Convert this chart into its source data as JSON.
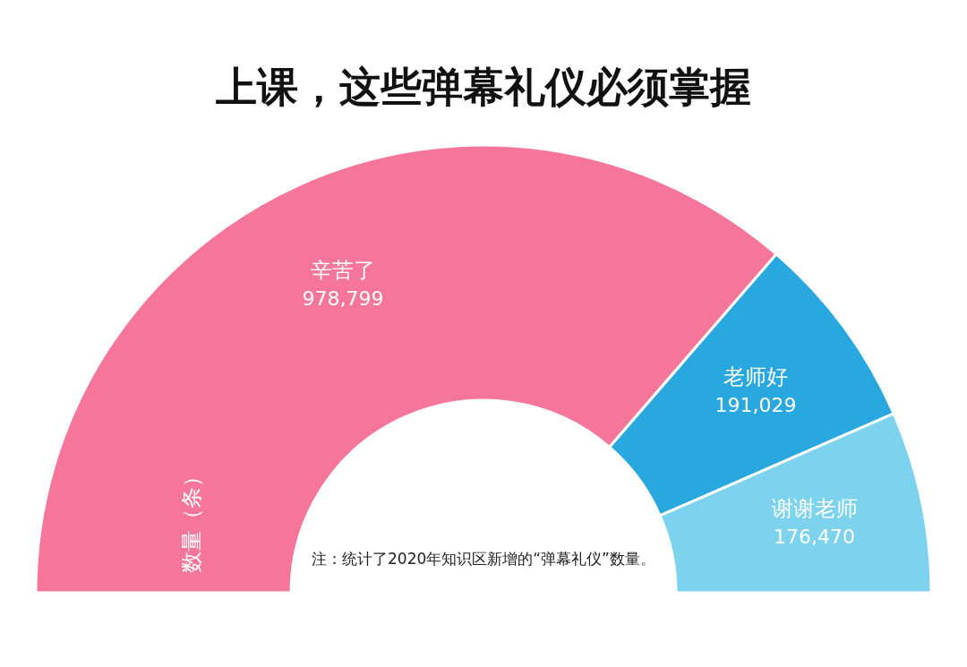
{
  "chart_data": {
    "type": "donut",
    "title": "上课，这些弹幕礼仪必须掌握",
    "ylabel": "数量（条）",
    "categories": [
      "辛苦了",
      "老师好",
      "谢谢老师"
    ],
    "values": [
      978799,
      191029,
      176470
    ],
    "colors": [
      "#f5769a",
      "#29a8e0",
      "#7dd3ee"
    ],
    "value_labels": [
      "978,799",
      "191,029",
      "176,470"
    ],
    "annotations": [
      "注：统计了2020年知识区新增的“弹幕礼仪”数量。"
    ]
  }
}
